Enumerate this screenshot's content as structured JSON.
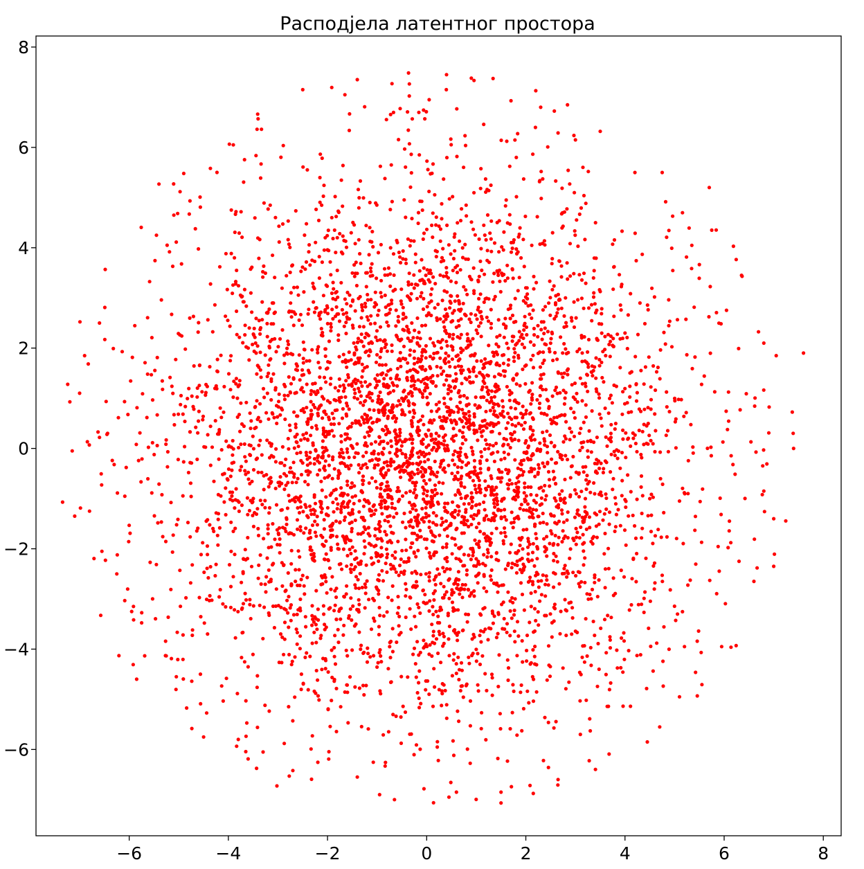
{
  "chart_data": {
    "type": "scatter",
    "title": "Расподјела латентног простора",
    "xlabel": "",
    "ylabel": "",
    "xlim": [
      -7.88,
      8.36
    ],
    "ylim": [
      -7.72,
      8.22
    ],
    "xticks": [
      -6,
      -4,
      -2,
      0,
      2,
      4,
      6,
      8
    ],
    "yticks": [
      -6,
      -4,
      -2,
      0,
      2,
      4,
      6,
      8
    ],
    "xtick_labels": [
      "−6",
      "−4",
      "−2",
      "0",
      "2",
      "4",
      "6",
      "8"
    ],
    "ytick_labels": [
      "−6",
      "−4",
      "−2",
      "0",
      "2",
      "4",
      "6",
      "8"
    ],
    "grid": false,
    "legend": "none",
    "marker_color": "#ff0000",
    "distribution": {
      "kind": "isotropic-gaussian-scatter",
      "center": [
        0,
        0
      ],
      "sigma": 2.6,
      "max_radius": 7.5,
      "n_points": 5000
    },
    "points": [
      [
        0.4,
        7.45
      ],
      [
        0.9,
        7.38
      ],
      [
        -0.7,
        7.27
      ],
      [
        -1.4,
        7.35
      ],
      [
        -2.5,
        7.15
      ],
      [
        -1.65,
        7.05
      ],
      [
        0.05,
        6.95
      ],
      [
        1.7,
        6.93
      ],
      [
        2.3,
        6.8
      ],
      [
        3.5,
        6.32
      ],
      [
        -3.4,
        6.57
      ],
      [
        -3.9,
        6.05
      ],
      [
        -5.4,
        5.27
      ],
      [
        -4.9,
        5.48
      ],
      [
        -5.1,
        4.65
      ],
      [
        -5.45,
        4.25
      ],
      [
        -6.6,
        2.5
      ],
      [
        -6.9,
        1.85
      ],
      [
        -7.0,
        1.1
      ],
      [
        -6.6,
        0.22
      ],
      [
        -7.15,
        -0.05
      ],
      [
        -7.1,
        -1.35
      ],
      [
        -6.8,
        -1.25
      ],
      [
        -6.55,
        -2.05
      ],
      [
        -6.25,
        -2.5
      ],
      [
        -5.95,
        -3.25
      ],
      [
        -5.85,
        -4.6
      ],
      [
        -5.05,
        -4.55
      ],
      [
        -4.5,
        -5.75
      ],
      [
        -3.8,
        -5.8
      ],
      [
        -3.3,
        -6.05
      ],
      [
        -2.7,
        -6.42
      ],
      [
        -1.4,
        -6.55
      ],
      [
        -0.95,
        -6.9
      ],
      [
        -0.65,
        -7.0
      ],
      [
        0.45,
        -6.95
      ],
      [
        0.6,
        -6.85
      ],
      [
        1.5,
        -6.85
      ],
      [
        2.65,
        -6.6
      ],
      [
        3.1,
        -5.7
      ],
      [
        4.45,
        -5.85
      ],
      [
        4.7,
        -5.55
      ],
      [
        5.1,
        -4.95
      ],
      [
        5.2,
        -3.95
      ],
      [
        5.95,
        -3.95
      ],
      [
        6.3,
        -2.25
      ],
      [
        6.6,
        -2.65
      ],
      [
        7.0,
        -2.35
      ],
      [
        7.0,
        -1.4
      ],
      [
        6.8,
        -0.85
      ],
      [
        7.4,
        0.0
      ],
      [
        7.6,
        1.9
      ],
      [
        7.05,
        1.85
      ],
      [
        6.8,
        2.1
      ],
      [
        6.35,
        3.45
      ],
      [
        5.7,
        5.2
      ],
      [
        5.75,
        4.35
      ],
      [
        4.75,
        5.5
      ],
      [
        4.2,
        5.5
      ],
      [
        3.0,
        6.15
      ],
      [
        2.8,
        3.0
      ],
      [
        2.6,
        2.9
      ],
      [
        3.1,
        1.4
      ],
      [
        3.6,
        0.8
      ],
      [
        2.2,
        -1.7
      ],
      [
        2.15,
        -1.9
      ],
      [
        1.0,
        -2.2
      ],
      [
        0.25,
        -3.65
      ],
      [
        0.35,
        -3.75
      ],
      [
        -1.0,
        -2.8
      ],
      [
        -3.2,
        -1.7
      ],
      [
        -3.4,
        -1.6
      ],
      [
        -3.6,
        2.0
      ],
      [
        -3.45,
        2.1
      ],
      [
        -2.4,
        -0.45
      ],
      [
        -2.1,
        -2.7
      ],
      [
        -1.1,
        2.1
      ],
      [
        -0.2,
        -0.3
      ],
      [
        0.3,
        -0.25
      ],
      [
        1.4,
        0.1
      ],
      [
        1.7,
        0.2
      ],
      [
        0.7,
        1.5
      ],
      [
        0.8,
        0.5
      ],
      [
        -0.5,
        1.0
      ],
      [
        -1.5,
        0.5
      ],
      [
        1.8,
        -0.7
      ],
      [
        2.6,
        -0.7
      ],
      [
        3.2,
        -1.0
      ],
      [
        -1.6,
        -1.8
      ],
      [
        0.9,
        -1.0
      ],
      [
        -0.8,
        -1.2
      ],
      [
        1.3,
        2.4
      ],
      [
        -2.0,
        1.6
      ],
      [
        -0.3,
        2.5
      ],
      [
        0.6,
        -2.6
      ],
      [
        2.0,
        3.2
      ],
      [
        -1.2,
        3.5
      ],
      [
        4.0,
        2.3
      ],
      [
        -4.2,
        -1.3
      ],
      [
        4.5,
        -1.0
      ]
    ]
  }
}
